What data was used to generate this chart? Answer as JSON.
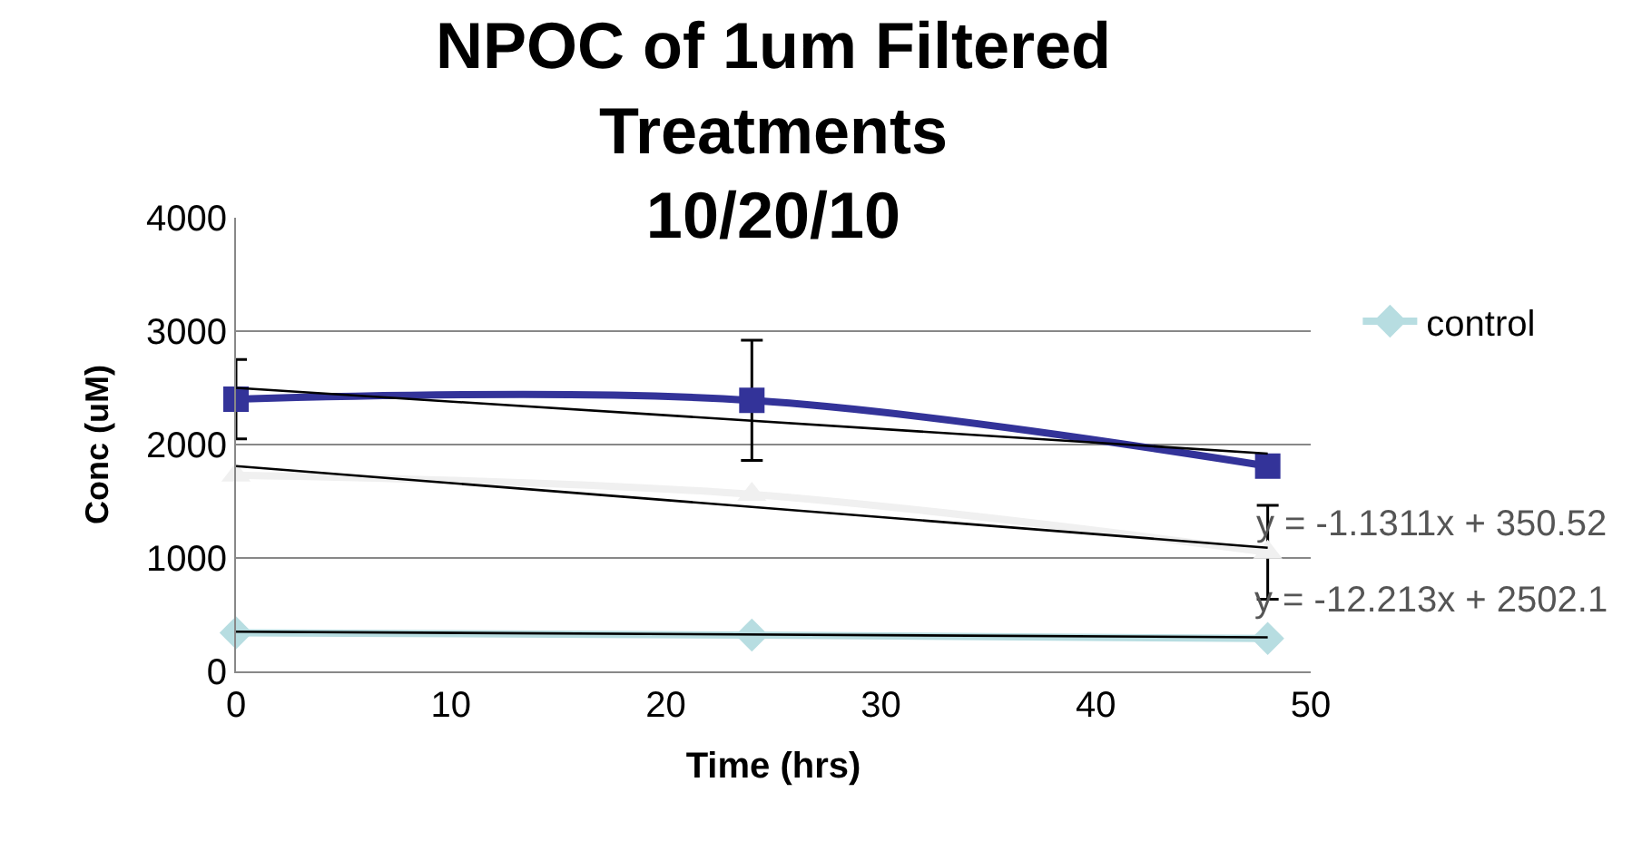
{
  "chart_data": {
    "type": "line",
    "title": "NPOC of 1um Filtered\nTreatments\n10/20/10",
    "xlabel": "Time (hrs)",
    "ylabel": "Conc (uM)",
    "x": [
      0,
      24,
      48
    ],
    "xlim": [
      0,
      50
    ],
    "xticks": [
      0,
      10,
      20,
      30,
      40,
      50
    ],
    "ylim": [
      0,
      4000
    ],
    "yticks": [
      0,
      1000,
      2000,
      3000,
      4000
    ],
    "grid": "y",
    "legend": "top right",
    "series": [
      {
        "color": "#f0f0f0",
        "marker": "triangle",
        "values": [
          1730,
          1560,
          1050
        ],
        "errors": [
          null,
          null,
          415
        ]
      },
      {
        "color": "#333399",
        "marker": "square",
        "values": [
          2400,
          2390,
          1810
        ],
        "errors": [
          350,
          530,
          null
        ]
      },
      {
        "name": "control",
        "color": "#b7dde1",
        "marker": "diamond",
        "values": [
          340,
          320,
          290
        ]
      },
      {
        "type": "line",
        "color": "#000000",
        "marker": "none",
        "values": [
          1810,
          null,
          1090
        ]
      },
      {
        "type": "line",
        "color": "#000000",
        "marker": "none",
        "values": [
          2500,
          null,
          1920
        ]
      },
      {
        "type": "line",
        "color": "#000000",
        "marker": "none",
        "values": [
          350,
          null,
          300
        ]
      }
    ],
    "annotations": [
      {
        "text": "y = -1.1311x + 350.52",
        "x": 48,
        "y": 1290
      },
      {
        "text": "y = -12.213x + 2502.1",
        "x": 48,
        "y": 620
      }
    ]
  }
}
